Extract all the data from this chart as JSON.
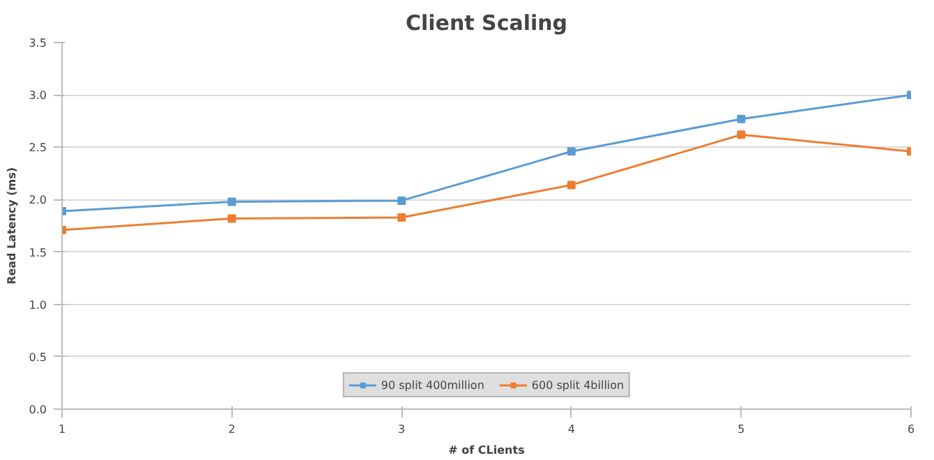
{
  "chart_data": {
    "type": "line",
    "title": "Client Scaling",
    "xlabel": "# of CLients",
    "ylabel": "Read Latency (ms)",
    "x": [
      1,
      2,
      3,
      4,
      5,
      6
    ],
    "xlim": [
      1,
      6
    ],
    "xticks": [
      1,
      2,
      3,
      4,
      5,
      6
    ],
    "ylim": [
      0,
      3.5
    ],
    "yticks": [
      {
        "value": 0,
        "label": "0.0"
      },
      {
        "value": 0.5,
        "label": "0.5"
      },
      {
        "value": 1,
        "label": "1.0"
      },
      {
        "value": 1.5,
        "label": "1.5"
      },
      {
        "value": 2,
        "label": "2.0"
      },
      {
        "value": 2.5,
        "label": "2.5"
      },
      {
        "value": 3,
        "label": "3.0"
      },
      {
        "value": 3.5,
        "label": "3.5"
      }
    ],
    "grid": "y",
    "legend": "bottom",
    "marker": "square",
    "series": [
      {
        "name": "90 split 400million",
        "color": "#5b9bd5",
        "values": [
          1.89,
          1.98,
          1.99,
          2.46,
          2.77,
          3.0
        ]
      },
      {
        "name": "600 split 4billion",
        "color": "#ed7d31",
        "values": [
          1.71,
          1.82,
          1.83,
          2.14,
          2.62,
          2.46
        ]
      }
    ]
  }
}
